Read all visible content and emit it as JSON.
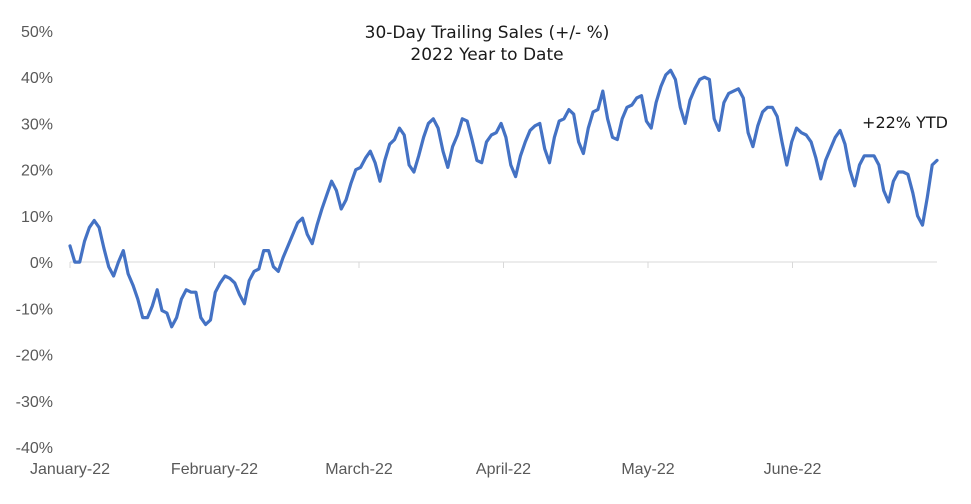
{
  "chart_data": {
    "type": "line",
    "title": "30-Day Trailing Sales (+/- %)",
    "subtitle": "2022 Year to Date",
    "xlabel": "",
    "ylabel": "",
    "ylim": [
      -40,
      50
    ],
    "yticks": [
      50,
      40,
      30,
      20,
      10,
      0,
      -10,
      -20,
      -30,
      -40
    ],
    "ytick_labels": [
      "50%",
      "40%",
      "30%",
      "20%",
      "10%",
      "0%",
      "-10%",
      "-20%",
      "-30%",
      "-40%"
    ],
    "xtick_labels": [
      "January-22",
      "February-22",
      "March-22",
      "April-22",
      "May-22",
      "June-22"
    ],
    "grid": false,
    "colors": {
      "line": "#4472C4",
      "axis": "#d9d9d9"
    },
    "annotation": "+22% YTD",
    "series": [
      {
        "values": [
          3.5,
          0,
          0,
          4.5,
          7.5,
          9,
          7.5,
          3,
          -1,
          -3,
          0,
          2.5,
          -2.5,
          -5,
          -8,
          -12,
          -12,
          -9.5,
          -6,
          -10.5,
          -11,
          -14,
          -12,
          -8,
          -6,
          -6.5,
          -6.5,
          -12,
          -13.5,
          -12.5,
          -6.5,
          -4.5,
          -3,
          -3.5,
          -4.5,
          -7,
          -9,
          -4,
          -2,
          -1.5,
          2.5,
          2.5,
          -1,
          -2,
          1,
          3.5,
          6,
          8.5,
          9.5,
          6,
          4,
          8,
          11.5,
          14.5,
          17.5,
          15.5,
          11.5,
          13.5,
          17,
          20,
          20.5,
          22.5,
          24,
          21.5,
          17.5,
          22,
          25.5,
          26.5,
          29,
          27.5,
          21,
          19.5,
          23,
          27,
          30,
          31,
          29,
          24,
          20.5,
          25,
          27.5,
          31,
          30.5,
          26.5,
          22,
          21.5,
          26,
          27.5,
          28,
          30,
          27,
          21,
          18.5,
          23,
          26,
          28.5,
          29.5,
          30,
          24.5,
          21.5,
          27,
          30.5,
          31,
          33,
          32,
          26,
          23.5,
          29,
          32.5,
          33,
          37,
          31,
          27,
          26.5,
          31,
          33.5,
          34,
          35.5,
          36,
          30.5,
          29,
          34.5,
          38,
          40.5,
          41.5,
          39.5,
          33.5,
          30,
          35,
          37.5,
          39.5,
          40,
          39.5,
          31,
          28.5,
          34.5,
          36.5,
          37,
          37.5,
          35.5,
          28,
          25,
          29.5,
          32.5,
          33.5,
          33.5,
          31.5,
          26,
          21,
          26,
          29,
          28,
          27.5,
          26,
          22.5,
          18,
          22,
          24.5,
          27,
          28.5,
          25.5,
          20,
          16.5,
          21,
          23,
          23,
          23,
          21,
          15.5,
          13,
          17.5,
          19.5,
          19.5,
          19,
          15,
          10,
          8,
          14,
          21,
          22
        ]
      }
    ]
  }
}
